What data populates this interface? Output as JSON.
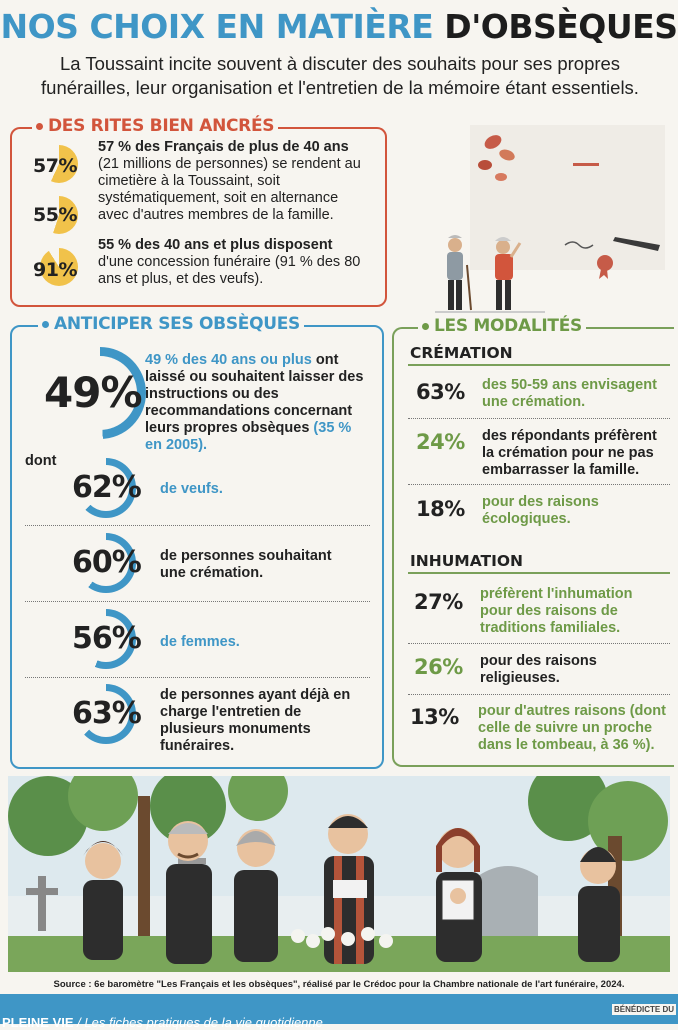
{
  "header": {
    "title_part1": "NOS CHOIX EN MATIÈRE",
    "title_part2": "D'OBSÈQUES",
    "intro": "La Toussaint incite souvent à discuter des souhaits pour ses propres funérailles, leur organisation et l'entretien de la mémoire étant essentiels."
  },
  "rites": {
    "title": "DES RITES BIEN ANCRÉS",
    "stats": [
      {
        "pct": "57%",
        "value": 57
      },
      {
        "pct": "55%",
        "value": 55
      },
      {
        "pct": "91%",
        "value": 91
      }
    ],
    "text1_bold": "57 % des Français de plus de 40 ans",
    "text1": "(21 millions de personnes) se rendent au cimetière à la Toussaint, soit systématiquement, soit en alternance avec d'autres membres de la famille.",
    "text2_bold": "55 % des 40 ans et plus disposent",
    "text2": "d'une concession funéraire (91 % des 80 ans et plus, et des veufs)."
  },
  "anticiper": {
    "title": "ANTICIPER SES OBSÈQUES",
    "main_pct": "49%",
    "main_value": 49,
    "main_text_blue": "49 % des 40 ans ou plus",
    "main_text": "ont laissé ou souhaitent laisser des instructions ou des recommandations concernant leurs propres obsèques",
    "main_text_end": "(35 % en 2005).",
    "dont": "dont",
    "items": [
      {
        "pct": "62%",
        "value": 62,
        "text": "de veufs.",
        "blue": true
      },
      {
        "pct": "60%",
        "value": 60,
        "text": "de personnes souhaitant une crémation.",
        "blue": false
      },
      {
        "pct": "56%",
        "value": 56,
        "text": "de femmes.",
        "blue": true
      },
      {
        "pct": "63%",
        "value": 63,
        "text": "de personnes ayant déjà en charge l'entretien de plusieurs monuments funéraires.",
        "blue": false
      }
    ]
  },
  "modalites": {
    "title": "LES MODALITÉS",
    "cremation": {
      "head": "CRÉMATION",
      "items": [
        {
          "pct": "63%",
          "text": "des 50-59 ans envisagent une crémation.",
          "green": true
        },
        {
          "pct": "24%",
          "text": "des répondants préfèrent la crémation pour ne pas embarrasser la famille.",
          "green": false
        },
        {
          "pct": "18%",
          "text": "pour des raisons écologiques.",
          "green": true
        }
      ]
    },
    "inhumation": {
      "head": "INHUMATION",
      "items": [
        {
          "pct": "27%",
          "text": "préfèrent l'inhumation pour des raisons de traditions familiales.",
          "green": true
        },
        {
          "pct": "26%",
          "text": "pour des raisons religieuses.",
          "green": false
        },
        {
          "pct": "13%",
          "text": "pour d'autres raisons (dont celle de suivre un proche dans le tombeau, à 36 %).",
          "green": true
        }
      ]
    }
  },
  "source": "Source : 6e baromètre \"Les Français et les obsèques\", réalisé par le Crédoc pour la Chambre nationale de l'art funéraire, 2024.",
  "footer": {
    "left": "PLEINE VIE",
    "left_sub": "/ Les fiches pratiques de la vie quotidienne",
    "right": "BÉNÉDICTE DU"
  },
  "colors": {
    "blue": "#3f96c6",
    "red": "#d2553c",
    "green": "#6e9a47",
    "yellow": "#f1c24a"
  }
}
